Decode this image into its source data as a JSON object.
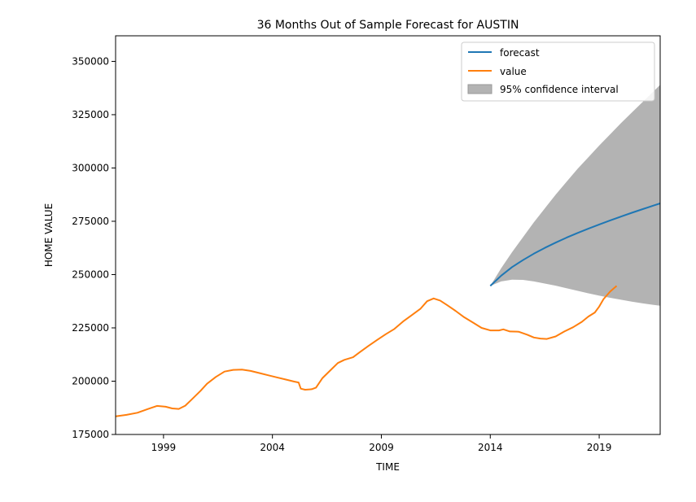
{
  "chart_data": {
    "type": "line",
    "title": "36 Months Out of Sample Forecast for AUSTIN",
    "xlabel": "TIME",
    "ylabel": "HOME VALUE",
    "xlim": [
      1996.8,
      2021.8
    ],
    "ylim": [
      175000,
      362000
    ],
    "x_ticks": [
      1999,
      2004,
      2009,
      2014,
      2019
    ],
    "x_tick_labels": [
      "1999",
      "2004",
      "2009",
      "2014",
      "2019"
    ],
    "y_ticks": [
      175000,
      200000,
      225000,
      250000,
      275000,
      300000,
      325000,
      350000
    ],
    "y_tick_labels": [
      "175000",
      "200000",
      "225000",
      "250000",
      "275000",
      "300000",
      "325000",
      "350000"
    ],
    "grid": false,
    "legend_position": "top-right",
    "legend": [
      {
        "label": "forecast",
        "kind": "line",
        "color": "#1f77b4"
      },
      {
        "label": "value",
        "kind": "line",
        "color": "#ff7f0e"
      },
      {
        "label": "95% confidence interval",
        "kind": "patch",
        "color": "#b3b3b3"
      }
    ],
    "series": [
      {
        "name": "value",
        "color": "#ff7f0e",
        "points": [
          [
            1996.8,
            183500
          ],
          [
            1997.3,
            184200
          ],
          [
            1997.8,
            185200
          ],
          [
            1998.3,
            187000
          ],
          [
            1998.7,
            188400
          ],
          [
            1999.1,
            188000
          ],
          [
            1999.4,
            187200
          ],
          [
            1999.7,
            187000
          ],
          [
            2000.0,
            188500
          ],
          [
            2000.3,
            191500
          ],
          [
            2000.7,
            195500
          ],
          [
            2001.0,
            198800
          ],
          [
            2001.4,
            202000
          ],
          [
            2001.8,
            204500
          ],
          [
            2002.2,
            205300
          ],
          [
            2002.6,
            205400
          ],
          [
            2003.0,
            204800
          ],
          [
            2003.4,
            203800
          ],
          [
            2003.8,
            202800
          ],
          [
            2004.2,
            201800
          ],
          [
            2004.6,
            200800
          ],
          [
            2005.0,
            199800
          ],
          [
            2005.2,
            199400
          ],
          [
            2005.3,
            196500
          ],
          [
            2005.5,
            196000
          ],
          [
            2005.8,
            196200
          ],
          [
            2006.0,
            197000
          ],
          [
            2006.3,
            201500
          ],
          [
            2006.7,
            205500
          ],
          [
            2007.0,
            208500
          ],
          [
            2007.3,
            210000
          ],
          [
            2007.7,
            211200
          ],
          [
            2008.0,
            213500
          ],
          [
            2008.4,
            216500
          ],
          [
            2008.8,
            219300
          ],
          [
            2009.2,
            222000
          ],
          [
            2009.6,
            224500
          ],
          [
            2010.0,
            228000
          ],
          [
            2010.4,
            231000
          ],
          [
            2010.8,
            234000
          ],
          [
            2011.1,
            237500
          ],
          [
            2011.4,
            238800
          ],
          [
            2011.7,
            237800
          ],
          [
            2012.0,
            235800
          ],
          [
            2012.4,
            233000
          ],
          [
            2012.8,
            230000
          ],
          [
            2013.2,
            227500
          ],
          [
            2013.6,
            225000
          ],
          [
            2014.0,
            223800
          ],
          [
            2014.4,
            223800
          ],
          [
            2014.6,
            224300
          ],
          [
            2014.9,
            223300
          ],
          [
            2015.3,
            223200
          ],
          [
            2015.7,
            221800
          ],
          [
            2016.0,
            220500
          ],
          [
            2016.3,
            220000
          ],
          [
            2016.6,
            219800
          ],
          [
            2017.0,
            221000
          ],
          [
            2017.4,
            223300
          ],
          [
            2017.8,
            225300
          ],
          [
            2018.2,
            227800
          ],
          [
            2018.5,
            230300
          ],
          [
            2018.8,
            232200
          ],
          [
            2019.0,
            235000
          ],
          [
            2019.2,
            238500
          ],
          [
            2019.5,
            242000
          ],
          [
            2019.8,
            244700
          ]
        ]
      },
      {
        "name": "forecast",
        "color": "#1f77b4",
        "points": [
          [
            2014.0,
            244700
          ],
          [
            2014.5,
            249500
          ],
          [
            2015.0,
            253500
          ],
          [
            2015.5,
            256800
          ],
          [
            2016.0,
            259800
          ],
          [
            2016.5,
            262500
          ],
          [
            2017.0,
            265000
          ],
          [
            2017.5,
            267300
          ],
          [
            2018.0,
            269500
          ],
          [
            2018.5,
            271500
          ],
          [
            2019.0,
            273500
          ],
          [
            2019.5,
            275400
          ],
          [
            2020.0,
            277200
          ],
          [
            2020.5,
            279000
          ],
          [
            2021.0,
            280700
          ],
          [
            2021.5,
            282400
          ],
          [
            2021.8,
            283400
          ]
        ]
      }
    ],
    "confidence_interval": {
      "label": "95% confidence interval",
      "color": "#b3b3b3",
      "x": [
        2014.0,
        2014.5,
        2015.0,
        2015.5,
        2016.0,
        2016.5,
        2017.0,
        2017.5,
        2018.0,
        2018.5,
        2019.0,
        2019.5,
        2020.0,
        2020.5,
        2021.0,
        2021.5,
        2021.8
      ],
      "lower": [
        244700,
        246800,
        247600,
        247500,
        246800,
        245800,
        244800,
        243600,
        242400,
        241200,
        240100,
        239100,
        238200,
        237300,
        236500,
        235800,
        235400
      ],
      "upper": [
        244700,
        253000,
        260500,
        267500,
        274500,
        281000,
        287500,
        293500,
        299500,
        305000,
        310500,
        315800,
        321000,
        326000,
        331000,
        336000,
        339000
      ]
    }
  }
}
